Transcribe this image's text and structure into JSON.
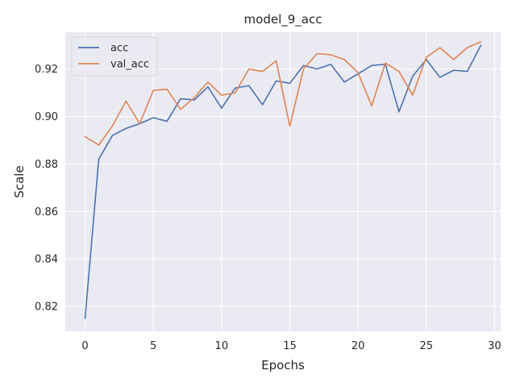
{
  "chart_data": {
    "type": "line",
    "title": "model_9_acc",
    "xlabel": "Epochs",
    "ylabel": "Scale",
    "xlim": [
      -1.45,
      30.45
    ],
    "ylim": [
      0.8095,
      0.9355
    ],
    "xticks": [
      0,
      5,
      10,
      15,
      20,
      25,
      30
    ],
    "yticks": [
      0.82,
      0.84,
      0.86,
      0.88,
      0.9,
      0.92
    ],
    "ytick_labels": [
      "0.82",
      "0.84",
      "0.86",
      "0.88",
      "0.90",
      "0.92"
    ],
    "grid": true,
    "legend_position": "top-left",
    "x": [
      0,
      1,
      2,
      3,
      4,
      5,
      6,
      7,
      8,
      9,
      10,
      11,
      12,
      13,
      14,
      15,
      16,
      17,
      18,
      19,
      20,
      21,
      22,
      23,
      24,
      25,
      26,
      27,
      28,
      29
    ],
    "series": [
      {
        "name": "acc",
        "color": "#4c72b0",
        "values": [
          0.815,
          0.882,
          0.892,
          0.895,
          0.897,
          0.8995,
          0.898,
          0.9075,
          0.907,
          0.9125,
          0.9035,
          0.912,
          0.913,
          0.905,
          0.915,
          0.914,
          0.9215,
          0.92,
          0.922,
          0.9145,
          0.918,
          0.9215,
          0.922,
          0.902,
          0.917,
          0.924,
          0.9165,
          0.9195,
          0.919,
          0.93
        ]
      },
      {
        "name": "val_acc",
        "color": "#dd8452",
        "values": [
          0.8915,
          0.888,
          0.896,
          0.9065,
          0.897,
          0.911,
          0.9115,
          0.903,
          0.908,
          0.9145,
          0.909,
          0.91,
          0.92,
          0.919,
          0.9235,
          0.896,
          0.92,
          0.9265,
          0.926,
          0.924,
          0.9185,
          0.9045,
          0.9225,
          0.919,
          0.909,
          0.925,
          0.929,
          0.924,
          0.929,
          0.9315
        ]
      }
    ]
  },
  "colors": {
    "plot_background": "#eaeaf2",
    "grid": "#ffffff",
    "text": "#262626"
  }
}
